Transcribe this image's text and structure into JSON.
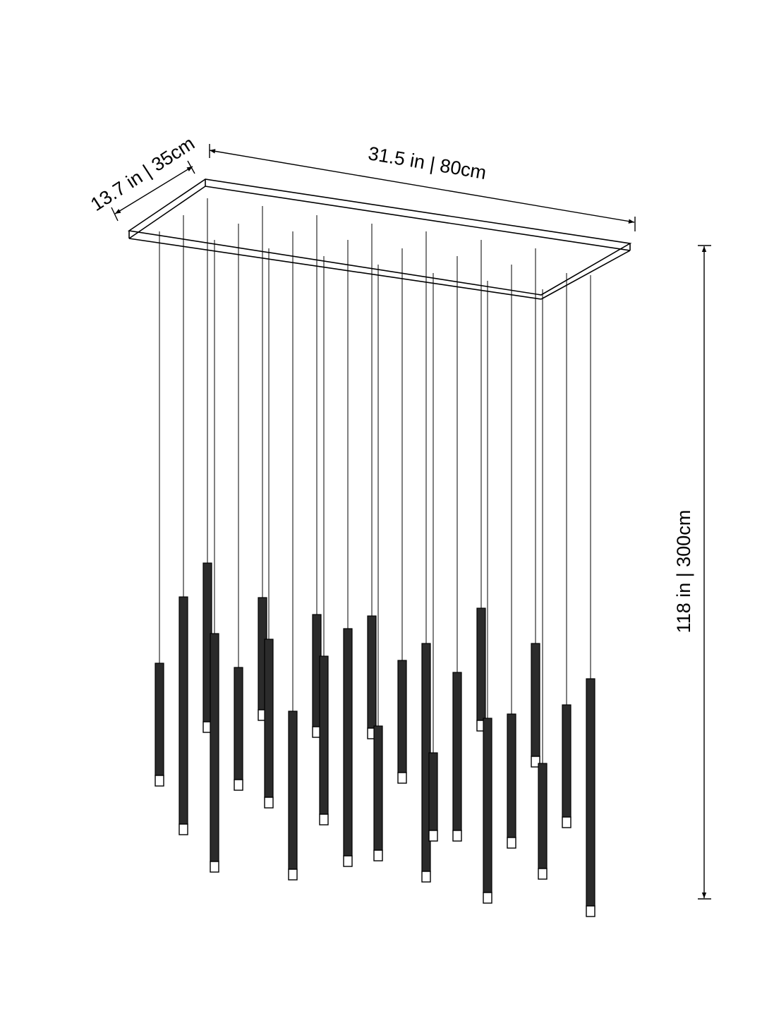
{
  "dimensions": {
    "width_label": "31.5 in | 80cm",
    "depth_label": "13.7 in | 35cm",
    "height_label": "118 in | 300cm"
  },
  "colors": {
    "line": "#000000",
    "tube_fill": "#2b2b2b",
    "lens_fill": "#ffffff"
  },
  "pendant_count": 24
}
